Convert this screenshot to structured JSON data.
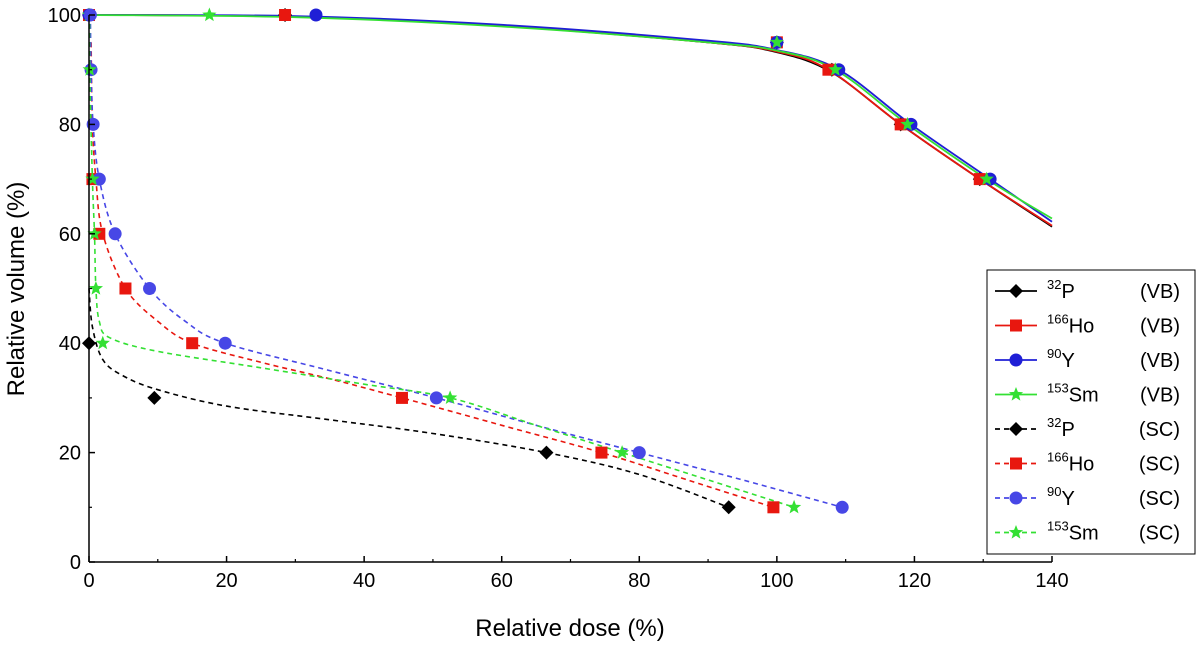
{
  "chart_data": {
    "type": "line",
    "title": "",
    "xlabel": "Relative dose (%)",
    "ylabel": "Relative volume (%)",
    "xlim": [
      0,
      140
    ],
    "ylim": [
      0,
      100
    ],
    "xticks": [
      "0",
      "20",
      "40",
      "60",
      "80",
      "100",
      "120",
      "140"
    ],
    "yticks": [
      "0",
      "20",
      "40",
      "60",
      "80",
      "100"
    ],
    "legend_position": "right",
    "series": [
      {
        "name": "32P (VB)",
        "iso_mass": "32",
        "iso_sym": "P",
        "group": "(VB)",
        "color": "#000000",
        "marker": "diamond",
        "dash": "solid",
        "points": [
          [
            0,
            100
          ],
          [
            28.5,
            100
          ],
          [
            100,
            95
          ],
          [
            108,
            90
          ],
          [
            118,
            80
          ],
          [
            129.5,
            70
          ]
        ],
        "curve": [
          [
            0,
            100
          ],
          [
            30,
            99.7
          ],
          [
            60,
            98
          ],
          [
            90,
            95
          ],
          [
            100,
            93.2
          ],
          [
            108,
            89.5
          ],
          [
            118,
            80
          ],
          [
            129.5,
            70
          ],
          [
            140,
            61.3
          ]
        ]
      },
      {
        "name": "166Ho (VB)",
        "iso_mass": "166",
        "iso_sym": "Ho",
        "group": "(VB)",
        "color": "#e8170f",
        "marker": "square",
        "dash": "solid",
        "points": [
          [
            0,
            100
          ],
          [
            28.5,
            100
          ],
          [
            100,
            95
          ],
          [
            107.5,
            90
          ],
          [
            118,
            80
          ],
          [
            129.5,
            70
          ]
        ],
        "curve": [
          [
            0,
            100
          ],
          [
            30,
            99.7
          ],
          [
            60,
            98
          ],
          [
            90,
            95
          ],
          [
            100,
            93.3
          ],
          [
            107.5,
            90
          ],
          [
            118,
            80
          ],
          [
            129.5,
            70
          ],
          [
            140,
            61.5
          ]
        ]
      },
      {
        "name": "90Y (VB)",
        "iso_mass": "90",
        "iso_sym": "Y",
        "group": "(VB)",
        "color": "#1f1fd6",
        "marker": "circle",
        "dash": "solid",
        "points": [
          [
            0,
            100
          ],
          [
            33,
            100
          ],
          [
            100,
            95
          ],
          [
            109,
            90
          ],
          [
            119.5,
            80
          ],
          [
            131,
            70
          ]
        ],
        "curve": [
          [
            0,
            100
          ],
          [
            30,
            99.8
          ],
          [
            60,
            98.2
          ],
          [
            90,
            95.3
          ],
          [
            100,
            93.6
          ],
          [
            109,
            90
          ],
          [
            119.5,
            80
          ],
          [
            131,
            70
          ],
          [
            140,
            62.2
          ]
        ]
      },
      {
        "name": "153Sm (VB)",
        "iso_mass": "153",
        "iso_sym": "Sm",
        "group": "(VB)",
        "color": "#33e033",
        "marker": "star",
        "dash": "solid",
        "points": [
          [
            0,
            100
          ],
          [
            17.5,
            100
          ],
          [
            100,
            95
          ],
          [
            108.5,
            90
          ],
          [
            119,
            80
          ],
          [
            130.5,
            70
          ]
        ],
        "curve": [
          [
            0,
            100
          ],
          [
            30,
            99.6
          ],
          [
            60,
            97.9
          ],
          [
            90,
            95
          ],
          [
            100,
            93.5
          ],
          [
            108.5,
            90
          ],
          [
            119,
            80
          ],
          [
            130.5,
            70
          ],
          [
            140,
            62.8
          ]
        ]
      },
      {
        "name": "32P (SC)",
        "iso_mass": "32",
        "iso_sym": "P",
        "group": "(SC)",
        "color": "#000000",
        "marker": "diamond",
        "dash": "dashed",
        "points": [
          [
            0,
            40
          ],
          [
            9.5,
            30
          ],
          [
            66.5,
            20
          ],
          [
            93,
            10
          ]
        ],
        "curve": [
          [
            0,
            50
          ],
          [
            0.5,
            43
          ],
          [
            2,
            37
          ],
          [
            5,
            34
          ],
          [
            10,
            31.5
          ],
          [
            20,
            28.5
          ],
          [
            35,
            26
          ],
          [
            50,
            23.5
          ],
          [
            66.5,
            20
          ],
          [
            80,
            16
          ],
          [
            93,
            10
          ]
        ]
      },
      {
        "name": "166Ho (SC)",
        "iso_mass": "166",
        "iso_sym": "Ho",
        "group": "(SC)",
        "color": "#e8170f",
        "marker": "square",
        "dash": "dashed",
        "points": [
          [
            0.5,
            70
          ],
          [
            1.5,
            60
          ],
          [
            5.3,
            50
          ],
          [
            15,
            40
          ],
          [
            45.5,
            30
          ],
          [
            74.5,
            20
          ],
          [
            99.5,
            10
          ]
        ],
        "curve": [
          [
            0.3,
            95
          ],
          [
            0.5,
            80
          ],
          [
            1,
            70
          ],
          [
            2,
            60
          ],
          [
            5.3,
            50
          ],
          [
            10,
            44
          ],
          [
            15,
            40
          ],
          [
            25,
            36.5
          ],
          [
            35,
            33.5
          ],
          [
            45.5,
            30
          ],
          [
            60,
            25
          ],
          [
            74.5,
            20
          ],
          [
            87,
            15
          ],
          [
            99.5,
            10
          ]
        ]
      },
      {
        "name": "90Y (SC)",
        "iso_mass": "90",
        "iso_sym": "Y",
        "group": "(SC)",
        "color": "#4747e6",
        "marker": "circle",
        "dash": "dashed",
        "points": [
          [
            0.2,
            100
          ],
          [
            0.3,
            90
          ],
          [
            0.6,
            80
          ],
          [
            1.5,
            70
          ],
          [
            3.8,
            60
          ],
          [
            8.8,
            50
          ],
          [
            19.8,
            40
          ],
          [
            50.5,
            30
          ],
          [
            80,
            20
          ],
          [
            109.5,
            10
          ]
        ],
        "curve": [
          [
            0.2,
            100
          ],
          [
            0.3,
            90
          ],
          [
            0.6,
            80
          ],
          [
            1.5,
            70
          ],
          [
            3.8,
            60
          ],
          [
            8.8,
            50
          ],
          [
            14,
            44
          ],
          [
            19.8,
            40
          ],
          [
            35,
            35
          ],
          [
            50.5,
            30
          ],
          [
            65,
            25
          ],
          [
            80,
            20
          ],
          [
            95,
            15
          ],
          [
            109.5,
            10
          ]
        ]
      },
      {
        "name": "153Sm (SC)",
        "iso_mass": "153",
        "iso_sym": "Sm",
        "group": "(SC)",
        "color": "#33e033",
        "marker": "star",
        "dash": "dashed",
        "points": [
          [
            0.1,
            90
          ],
          [
            0.5,
            70
          ],
          [
            0.8,
            60
          ],
          [
            1,
            50
          ],
          [
            2,
            40
          ],
          [
            52.5,
            30
          ],
          [
            77.5,
            20
          ],
          [
            102.5,
            10
          ]
        ],
        "curve": [
          [
            0.1,
            100
          ],
          [
            0.1,
            90
          ],
          [
            0.5,
            70
          ],
          [
            0.8,
            60
          ],
          [
            1,
            50
          ],
          [
            1.5,
            44
          ],
          [
            3,
            41
          ],
          [
            10,
            38.5
          ],
          [
            25,
            35.5
          ],
          [
            40,
            32.5
          ],
          [
            52.5,
            30
          ],
          [
            65,
            25
          ],
          [
            77.5,
            20
          ],
          [
            90,
            15
          ],
          [
            102.5,
            10
          ]
        ]
      }
    ]
  }
}
